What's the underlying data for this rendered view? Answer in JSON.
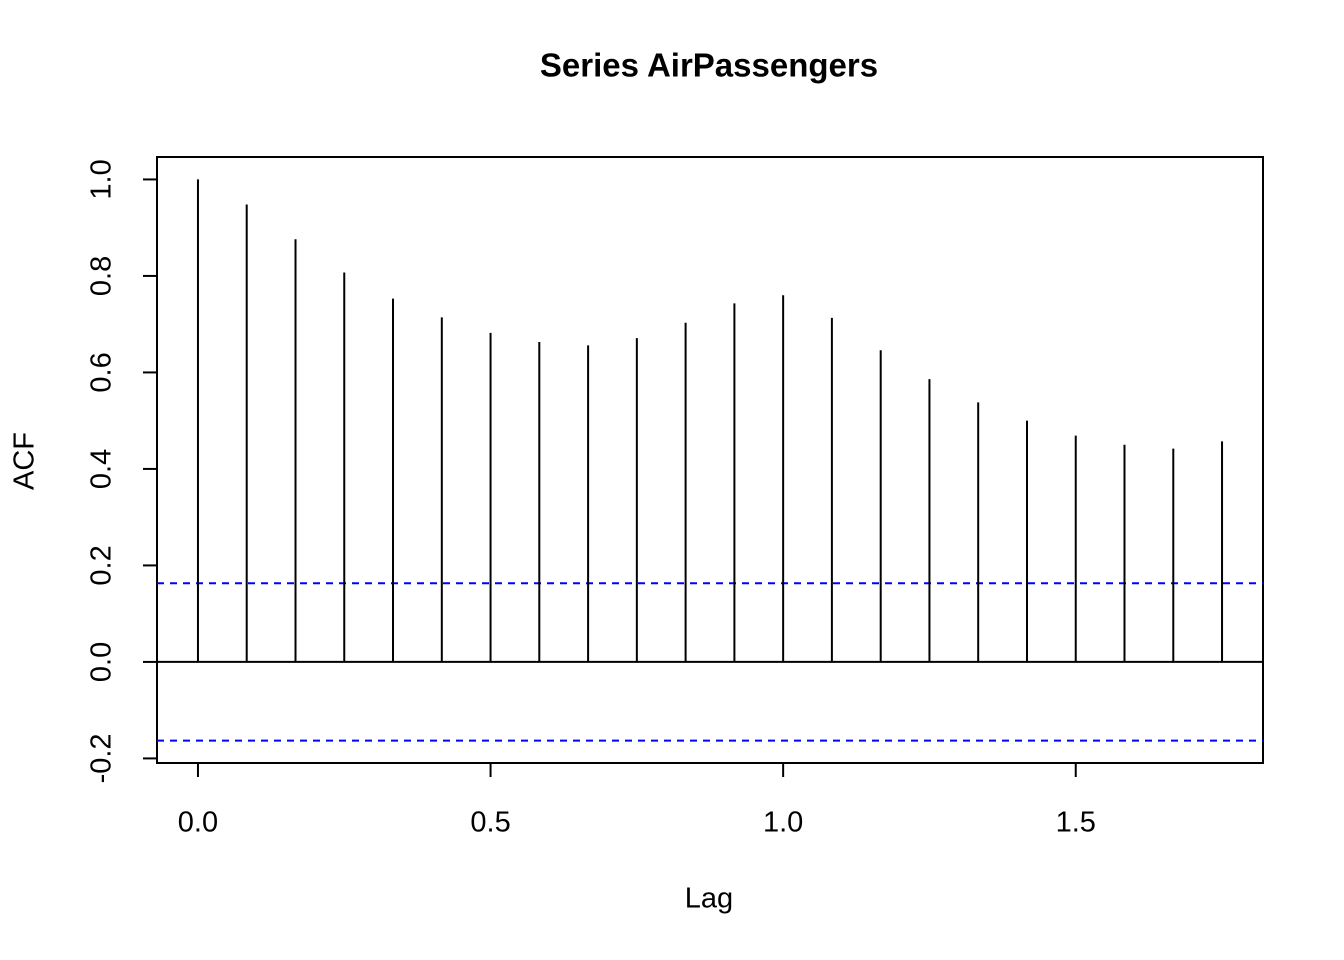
{
  "chart_data": {
    "type": "stem",
    "title": "Series  AirPassengers",
    "xlabel": "Lag",
    "ylabel": "ACF",
    "x": [
      0,
      0.0833,
      0.1667,
      0.25,
      0.3333,
      0.4167,
      0.5,
      0.5833,
      0.6667,
      0.75,
      0.8333,
      0.9167,
      1,
      1.0833,
      1.1667,
      1.25,
      1.3333,
      1.4167,
      1.5,
      1.5833,
      1.6667,
      1.75
    ],
    "values": [
      1.0,
      0.948,
      0.876,
      0.807,
      0.753,
      0.714,
      0.682,
      0.663,
      0.656,
      0.671,
      0.703,
      0.743,
      0.76,
      0.713,
      0.646,
      0.586,
      0.538,
      0.5,
      0.469,
      0.45,
      0.442,
      0.457
    ],
    "color": "#000000",
    "confidence_band": [
      -0.163,
      0.163
    ],
    "band_color": "#0000ff",
    "xlim": [
      -0.07,
      1.82
    ],
    "xticks": [
      {
        "value": 0,
        "label": "0.0"
      },
      0.5,
      {
        "value": 1,
        "label": "1.0"
      },
      1.5
    ],
    "ylim": [
      -0.2095,
      1.0465
    ],
    "yticks": [
      -0.2,
      {
        "value": 0,
        "label": "0.0"
      },
      0.2,
      0.4,
      0.6,
      0.8,
      {
        "value": 1,
        "label": "1.0"
      }
    ]
  }
}
